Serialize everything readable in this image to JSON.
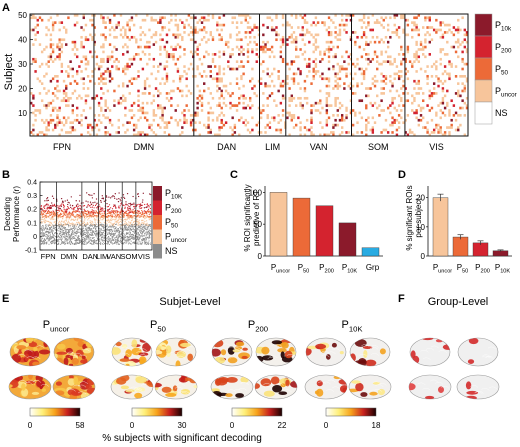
{
  "colors": {
    "p10k": "#8b1a2b",
    "p200": "#d4232f",
    "p50": "#ec6a38",
    "puncor": "#f7c59b",
    "ns": "#ffffff",
    "grp": "#29abe2",
    "gray": "#8c8c8c",
    "black": "#111111"
  },
  "panel_a": {
    "letter": "A",
    "ylabel": "Subject",
    "yticks": [
      "10",
      "20",
      "30",
      "40",
      "50"
    ],
    "networks": [
      "FPN",
      "DMN",
      "DAN",
      "LIM",
      "VAN",
      "SOM",
      "VIS"
    ],
    "legend": [
      "P10k",
      "P200",
      "P50",
      "Puncor",
      "NS"
    ]
  },
  "panel_b": {
    "letter": "B",
    "ylabel_line1": "Decoding",
    "ylabel_line2": "Performance (r)",
    "yticks": [
      "-0.1",
      "0",
      "0.1",
      "0.2",
      "0.3",
      "0.4"
    ],
    "networks": [
      "FPN",
      "DMN",
      "DAN",
      "LIM",
      "VAN",
      "SOM",
      "VIS"
    ],
    "legend": [
      "P10K",
      "P200",
      "P50",
      "Puncor",
      "NS"
    ]
  },
  "panel_c": {
    "letter": "C",
    "ylabel_line1": "% ROI significantly",
    "ylabel_line2": "predictive of RT",
    "yticks": [
      "0",
      "50",
      "100"
    ]
  },
  "panel_d": {
    "letter": "D",
    "ylabel_line1": "% significant ROIs",
    "ylabel_line2": "per subject",
    "yticks": [
      "0",
      "10",
      "20"
    ]
  },
  "panel_e": {
    "letter": "E",
    "title": "Subjet-Level",
    "maps": [
      "Puncor",
      "P50",
      "P200",
      "P10K"
    ],
    "cbar_min": "0",
    "cbar_max": [
      "58",
      "30",
      "22",
      "18"
    ],
    "xlabel": "% subjects with significant decoding"
  },
  "panel_f": {
    "letter": "F",
    "title": "Group-Level"
  },
  "chart_data": [
    {
      "type": "bar",
      "panel": "C",
      "categories": [
        "Puncor",
        "P50",
        "P200",
        "P10K",
        "Grp"
      ],
      "values": [
        100,
        91,
        79,
        52,
        13
      ],
      "ylabel": "% ROI significantly predictive of RT",
      "ylim": [
        0,
        110
      ]
    },
    {
      "type": "bar",
      "panel": "D",
      "categories": [
        "Puncor",
        "P50",
        "P200",
        "P10K"
      ],
      "values": [
        20,
        6.5,
        4.5,
        1.8
      ],
      "errors": [
        1.2,
        0.8,
        0.7,
        0.3
      ],
      "ylabel": "% significant ROIs per subject",
      "ylim": [
        0,
        24
      ]
    },
    {
      "type": "scatter",
      "panel": "B",
      "ylabel": "Decoding Performance (r)",
      "ylim": [
        -0.1,
        0.4
      ]
    },
    {
      "type": "heatmap",
      "panel": "A",
      "ylabel": "Subject",
      "ylim": [
        1,
        50
      ]
    }
  ]
}
